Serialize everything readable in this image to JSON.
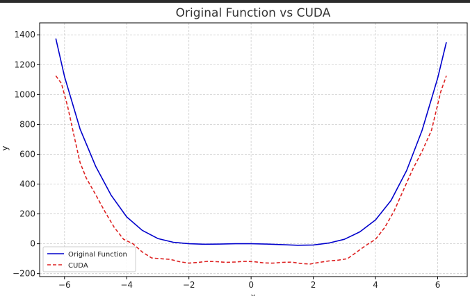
{
  "chart_data": {
    "type": "line",
    "title": "Original Function vs CUDA",
    "xlabel": "x",
    "ylabel": "y",
    "xlim": [
      -6.8,
      6.95
    ],
    "ylim": [
      -220,
      1480
    ],
    "xticks": [
      -6,
      -4,
      -2,
      0,
      2,
      4,
      6
    ],
    "xtick_labels": [
      "−6",
      "−4",
      "−2",
      "0",
      "2",
      "4",
      "6"
    ],
    "yticks": [
      -200,
      0,
      200,
      400,
      600,
      800,
      1000,
      1200,
      1400
    ],
    "ytick_labels": [
      "−200",
      "0",
      "200",
      "400",
      "600",
      "800",
      "1000",
      "1200",
      "1400"
    ],
    "grid": true,
    "legend_position": "lower-left",
    "series": [
      {
        "name": "Original Function",
        "color": "#0000cc",
        "style": "solid",
        "x": [
          -6.28,
          -6.0,
          -5.5,
          -5.0,
          -4.5,
          -4.0,
          -3.5,
          -3.0,
          -2.5,
          -2.0,
          -1.5,
          -1.0,
          -0.5,
          0.0,
          0.5,
          1.0,
          1.5,
          2.0,
          2.5,
          3.0,
          3.5,
          4.0,
          4.5,
          5.0,
          5.5,
          6.0,
          6.28
        ],
        "y": [
          1375,
          1120,
          770,
          520,
          325,
          180,
          90,
          35,
          10,
          0,
          -3,
          -2,
          0,
          0,
          -2,
          -6,
          -10,
          -8,
          5,
          30,
          80,
          160,
          290,
          490,
          760,
          1110,
          1350
        ]
      },
      {
        "name": "CUDA",
        "color": "#dd2222",
        "style": "dashed",
        "x": [
          -6.28,
          -6.1,
          -5.9,
          -5.7,
          -5.5,
          -5.3,
          -5.0,
          -4.7,
          -4.4,
          -4.1,
          -3.8,
          -3.5,
          -3.2,
          -2.9,
          -2.6,
          -2.3,
          -2.0,
          -1.7,
          -1.4,
          -1.1,
          -0.8,
          -0.5,
          -0.2,
          0.1,
          0.4,
          0.7,
          1.0,
          1.3,
          1.6,
          1.9,
          2.2,
          2.5,
          2.8,
          3.1,
          3.4,
          3.7,
          4.0,
          4.3,
          4.6,
          4.9,
          5.2,
          5.5,
          5.8,
          6.1,
          6.28
        ],
        "y": [
          1125,
          1075,
          920,
          730,
          545,
          440,
          330,
          215,
          110,
          30,
          0,
          -55,
          -95,
          -100,
          -105,
          -120,
          -130,
          -125,
          -118,
          -120,
          -125,
          -122,
          -118,
          -120,
          -128,
          -130,
          -125,
          -123,
          -132,
          -136,
          -125,
          -115,
          -110,
          -100,
          -55,
          -10,
          30,
          110,
          220,
          360,
          500,
          620,
          760,
          1020,
          1125
        ]
      }
    ]
  }
}
